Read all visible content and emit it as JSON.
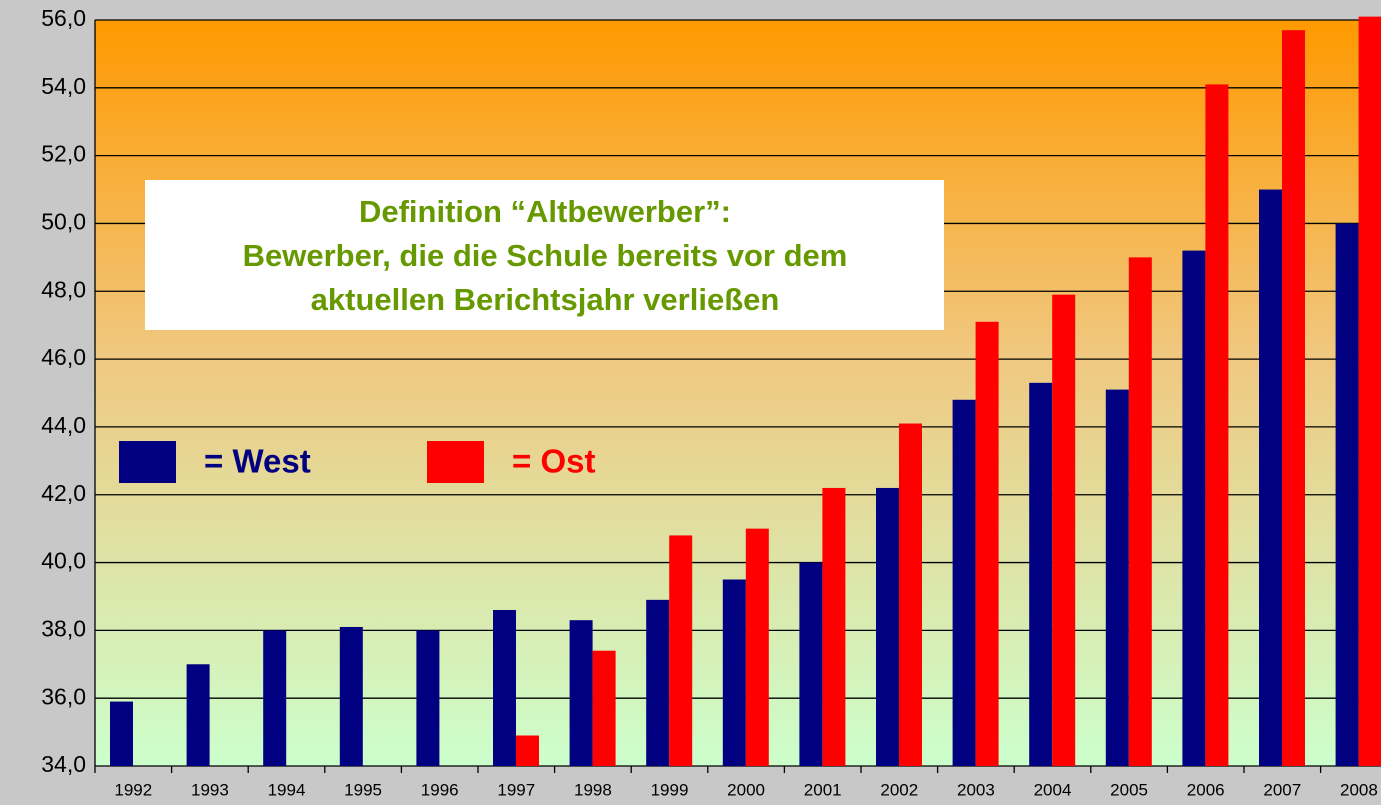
{
  "chart_data": {
    "type": "bar",
    "annotation": [
      "Definition “Altbewerber”:",
      "Bewerber, die die Schule bereits vor dem",
      "aktuellen Berichtsjahr verließen"
    ],
    "categories": [
      "1992",
      "1993",
      "1994",
      "1995",
      "1996",
      "1997",
      "1998",
      "1999",
      "2000",
      "2001",
      "2002",
      "2003",
      "2004",
      "2005",
      "2006",
      "2007",
      "2008"
    ],
    "series": [
      {
        "name": "= West",
        "color": "#000080",
        "values": [
          35.9,
          37.0,
          38.0,
          38.1,
          38.0,
          38.6,
          38.3,
          38.9,
          39.5,
          40.0,
          42.2,
          44.8,
          45.3,
          45.1,
          49.2,
          51.0,
          50.0
        ]
      },
      {
        "name": "= Ost",
        "color": "#ff0000",
        "values": [
          null,
          null,
          null,
          null,
          null,
          34.9,
          37.4,
          40.8,
          41.0,
          42.2,
          44.1,
          47.1,
          47.9,
          49.0,
          54.1,
          55.7,
          56.1
        ]
      }
    ],
    "ylim": [
      34,
      56
    ],
    "yticks": [
      {
        "value": 34,
        "label": "34,0"
      },
      {
        "value": 36,
        "label": "36,0"
      },
      {
        "value": 38,
        "label": "38,0"
      },
      {
        "value": 40,
        "label": "40,0"
      },
      {
        "value": 42,
        "label": "42,0"
      },
      {
        "value": 44,
        "label": "44,0"
      },
      {
        "value": 46,
        "label": "46,0"
      },
      {
        "value": 48,
        "label": "48,0"
      },
      {
        "value": 50,
        "label": "50,0"
      },
      {
        "value": 52,
        "label": "52,0"
      },
      {
        "value": 54,
        "label": "54,0"
      },
      {
        "value": 56,
        "label": "56,0"
      }
    ],
    "grid": true
  }
}
